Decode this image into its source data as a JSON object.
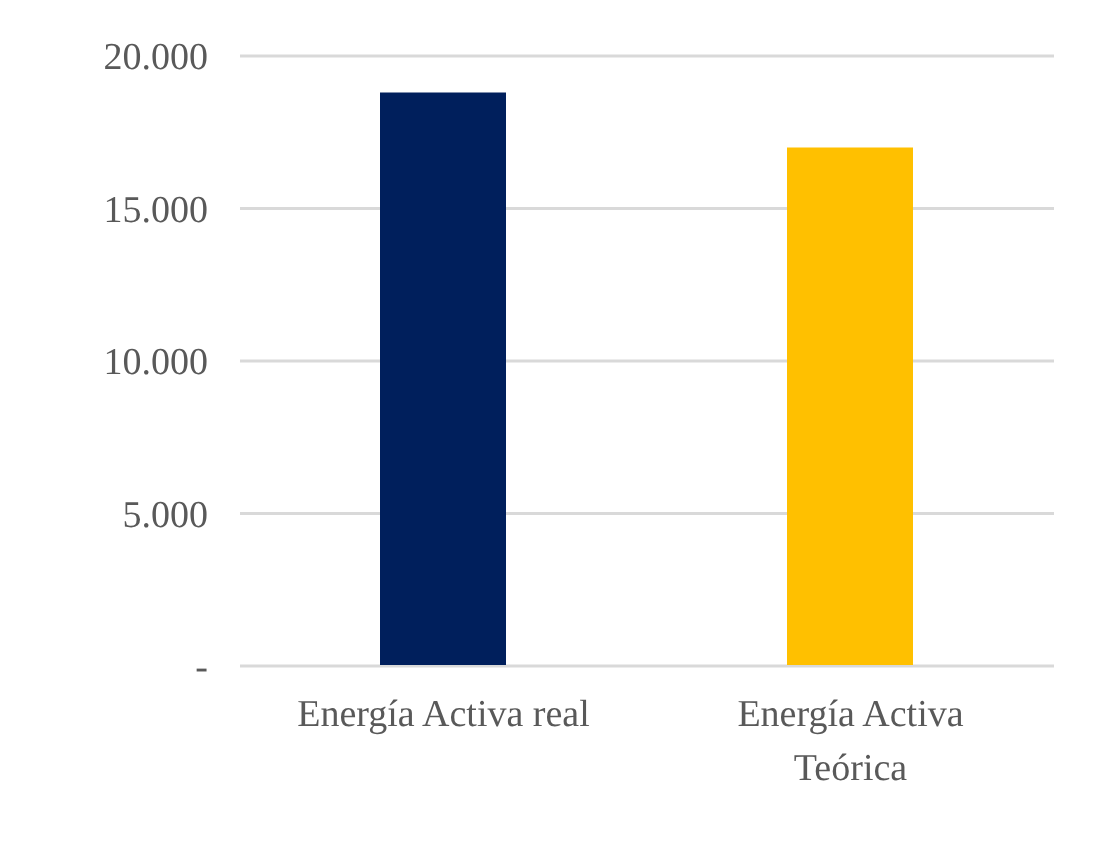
{
  "chart_data": {
    "type": "bar",
    "categories": [
      "Energía Activa real",
      "Energía Activa Teórica"
    ],
    "values": [
      18800,
      17000
    ],
    "colors": [
      "#001f5c",
      "#ffc000"
    ],
    "ylim": [
      0,
      20000
    ],
    "yticks": [
      {
        "value": 0,
        "label": "-"
      },
      {
        "value": 5000,
        "label": "5.000"
      },
      {
        "value": 10000,
        "label": "10.000"
      },
      {
        "value": 15000,
        "label": "15.000"
      },
      {
        "value": 20000,
        "label": "20.000"
      }
    ],
    "grid": "y"
  }
}
